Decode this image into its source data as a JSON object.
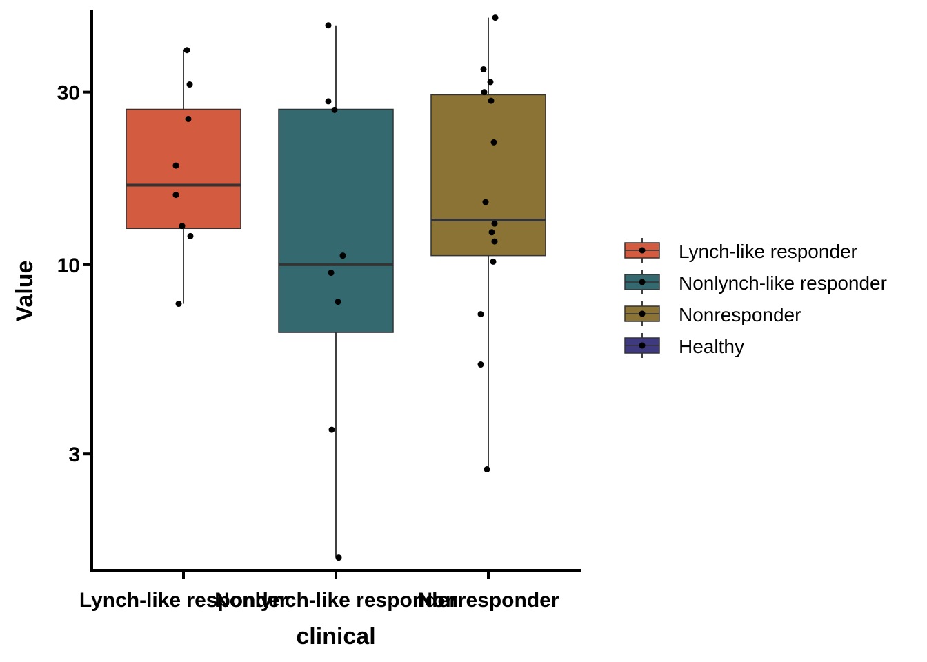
{
  "chart_data": {
    "type": "box",
    "xlabel": "clinical",
    "ylabel": "Value",
    "yscale": "log",
    "ylim": [
      1.43,
      50.5
    ],
    "yticks": [
      3,
      10,
      30
    ],
    "categories": [
      "Lynch-like responder",
      "Nonlynch-like responder",
      "Nonresponder"
    ],
    "series": [
      {
        "name": "Lynch-like responder",
        "color": "#d35b40",
        "box": {
          "whisker_low": 7.8,
          "q1": 12.6,
          "median": 16.6,
          "q3": 26.9,
          "whisker_high": 39.2
        },
        "points": [
          39.2,
          31.5,
          25.3,
          18.8,
          15.6,
          12.8,
          12.0,
          7.8
        ]
      },
      {
        "name": "Nonlynch-like responder",
        "color": "#356970",
        "box": {
          "whisker_low": 1.55,
          "q1": 6.5,
          "median": 10.0,
          "q3": 26.9,
          "whisker_high": 45.9
        },
        "points": [
          45.9,
          28.3,
          26.8,
          10.6,
          9.5,
          7.9,
          3.5,
          1.55
        ]
      },
      {
        "name": "Nonresponder",
        "color": "#8b7235",
        "box": {
          "whisker_low": 2.72,
          "q1": 10.6,
          "median": 13.3,
          "q3": 29.5,
          "whisker_high": 48.2
        },
        "points": [
          48.2,
          34.7,
          32.0,
          30.0,
          28.4,
          21.8,
          14.9,
          13.0,
          12.3,
          11.6,
          10.2,
          7.3,
          5.3,
          2.72
        ]
      }
    ],
    "legend": {
      "position": "right",
      "entries": [
        {
          "label": "Lynch-like responder",
          "color": "#d35b40"
        },
        {
          "label": "Nonlynch-like responder",
          "color": "#356970"
        },
        {
          "label": "Nonresponder",
          "color": "#8b7235"
        },
        {
          "label": "Healthy",
          "color": "#3f3a80"
        }
      ]
    }
  }
}
